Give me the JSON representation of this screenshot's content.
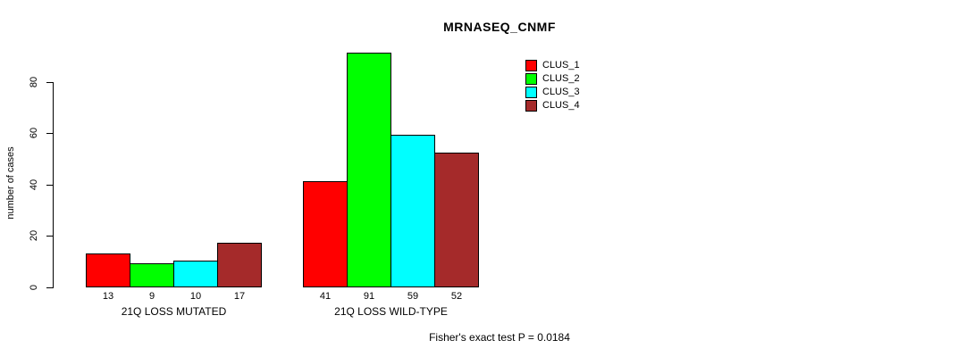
{
  "chart_data": {
    "type": "bar",
    "title": "MRNASEQ_CNMF",
    "ylabel": "number of cases",
    "xlabel": "",
    "categories": [
      "21Q LOSS MUTATED",
      "21Q LOSS WILD-TYPE"
    ],
    "series": [
      {
        "name": "CLUS_1",
        "color": "#ff0000",
        "values": [
          13,
          41
        ]
      },
      {
        "name": "CLUS_2",
        "color": "#00ff00",
        "values": [
          9,
          91
        ]
      },
      {
        "name": "CLUS_3",
        "color": "#00ffff",
        "values": [
          10,
          59
        ]
      },
      {
        "name": "CLUS_4",
        "color": "#a52a2a",
        "values": [
          17,
          52
        ]
      }
    ],
    "bar_border_color": "#000000",
    "bar_value_labels_shown": true,
    "y_ticks": [
      0,
      20,
      40,
      60,
      80
    ],
    "ylim": [
      0,
      91
    ],
    "grid": false,
    "legend_position": "top-right",
    "legend_entries": [
      "CLUS_1",
      "CLUS_2",
      "CLUS_3",
      "CLUS_4"
    ],
    "annotation": "Fisher's exact test P = 0.0184"
  }
}
